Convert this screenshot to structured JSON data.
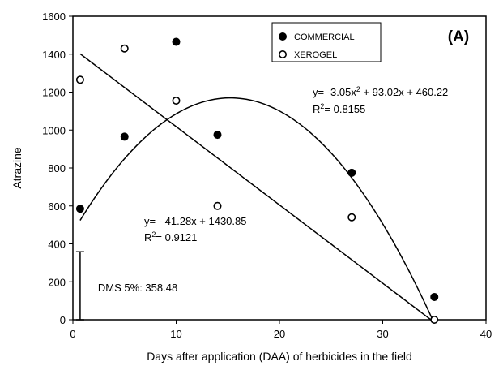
{
  "chart_data": {
    "type": "scatter",
    "panel_label": "(A)",
    "x_label": "Days after application (DAA) of herbicides in the field",
    "y_label": "Atrazine",
    "xlim": [
      0,
      40
    ],
    "xticks": [
      0,
      10,
      20,
      30,
      40
    ],
    "ylim": [
      0,
      1600
    ],
    "yticks": [
      0,
      200,
      400,
      600,
      800,
      1000,
      1200,
      1400,
      1600
    ],
    "series": [
      {
        "name": "COMMERCIAL",
        "color": "#000000",
        "marker": "filled",
        "x": [
          0.7,
          5,
          10,
          14,
          27,
          35
        ],
        "values": [
          585,
          965,
          1465,
          975,
          775,
          120
        ],
        "fit": {
          "coefficients": [
            -3.05,
            93.02,
            460.22
          ],
          "equation": [
            "y= -3.05x",
            "2",
            " + 93.02x + 460.22"
          ],
          "r2": [
            "R",
            "2",
            "= 0.8155"
          ]
        }
      },
      {
        "name": "XEROGEL",
        "color": "#000000",
        "marker": "open",
        "x": [
          0.7,
          5,
          10,
          14,
          27,
          35
        ],
        "values": [
          1265,
          1430,
          1155,
          600,
          540,
          0
        ],
        "fit": {
          "coefficients": [
            -41.28,
            1430.85
          ],
          "equation": [
            "y= - 41.28x + 1430.85"
          ],
          "r2": [
            "R",
            "2",
            "= 0.9121"
          ]
        }
      }
    ],
    "error_bar": {
      "label": "DMS 5%: 358.48",
      "x": 0.7,
      "value": 358.48
    }
  }
}
